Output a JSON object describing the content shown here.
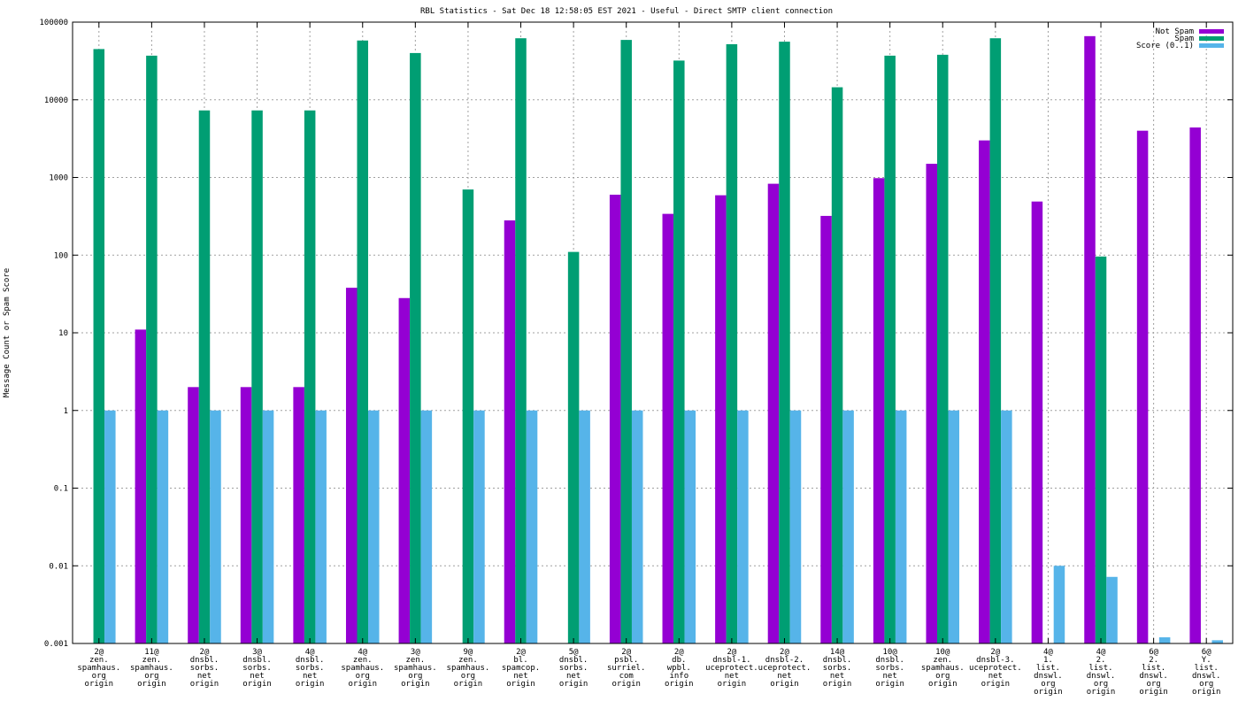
{
  "chart_data": {
    "type": "bar",
    "title": "RBL Statistics - Sat Dec 18 12:58:05 EST 2021 - Useful - Direct SMTP client connection",
    "ylabel": "Message Count or Spam Score",
    "xlabel": "",
    "yscale": "log",
    "ylim": [
      0.001,
      100000
    ],
    "yticks": [
      "0.001",
      "0.01",
      "0.1",
      "1",
      "10",
      "100",
      "1000",
      "10000",
      "100000"
    ],
    "grid": true,
    "legend_position": "top-right",
    "categories": [
      [
        "2@",
        "zen.",
        "spamhaus.",
        "org",
        "origin"
      ],
      [
        "11@",
        "zen.",
        "spamhaus.",
        "org",
        "origin"
      ],
      [
        "2@",
        "dnsbl.",
        "sorbs.",
        "net",
        "origin"
      ],
      [
        "3@",
        "dnsbl.",
        "sorbs.",
        "net",
        "origin"
      ],
      [
        "4@",
        "dnsbl.",
        "sorbs.",
        "net",
        "origin"
      ],
      [
        "4@",
        "zen.",
        "spamhaus.",
        "org",
        "origin"
      ],
      [
        "3@",
        "zen.",
        "spamhaus.",
        "org",
        "origin"
      ],
      [
        "9@",
        "zen.",
        "spamhaus.",
        "org",
        "origin"
      ],
      [
        "2@",
        "bl.",
        "spamcop.",
        "net",
        "origin"
      ],
      [
        "5@",
        "dnsbl.",
        "sorbs.",
        "net",
        "origin"
      ],
      [
        "2@",
        "psbl.",
        "surriel.",
        "com",
        "origin"
      ],
      [
        "2@",
        "db.",
        "wpbl.",
        "info",
        "origin"
      ],
      [
        "2@",
        "dnsbl-1.",
        "uceprotect.",
        "net",
        "origin"
      ],
      [
        "2@",
        "dnsbl-2.",
        "uceprotect.",
        "net",
        "origin"
      ],
      [
        "14@",
        "dnsbl.",
        "sorbs.",
        "net",
        "origin"
      ],
      [
        "10@",
        "dnsbl.",
        "sorbs.",
        "net",
        "origin"
      ],
      [
        "10@",
        "zen.",
        "spamhaus.",
        "org",
        "origin"
      ],
      [
        "2@",
        "dnsbl-3.",
        "uceprotect.",
        "net",
        "origin"
      ],
      [
        "4@",
        "1.",
        "list.",
        "dnswl.",
        "org",
        "origin"
      ],
      [
        "4@",
        "2.",
        "list.",
        "dnswl.",
        "org",
        "origin"
      ],
      [
        "6@",
        "2.",
        "list.",
        "dnswl.",
        "org",
        "origin"
      ],
      [
        "6@",
        "Y.",
        "list.",
        "dnswl.",
        "org",
        "origin"
      ]
    ],
    "series": [
      {
        "name": "Not Spam",
        "color": "#9400d3",
        "values": [
          0,
          11,
          2,
          2,
          2,
          38,
          28,
          0,
          280,
          0,
          600,
          340,
          590,
          830,
          320,
          980,
          1500,
          3000,
          490,
          66000,
          4000,
          4400
        ]
      },
      {
        "name": "Spam",
        "color": "#009e73",
        "values": [
          45000,
          37000,
          7300,
          7300,
          7300,
          58000,
          40000,
          700,
          62000,
          110,
          59000,
          32000,
          52000,
          56000,
          14500,
          37000,
          38000,
          62000,
          0,
          96,
          0,
          0
        ]
      },
      {
        "name": "Score (0..1)",
        "color": "#56b4e9",
        "values": [
          1,
          1,
          1,
          1,
          1,
          1,
          1,
          1,
          1,
          1,
          1,
          1,
          1,
          1,
          1,
          1,
          1,
          1,
          0.01,
          0.0072,
          0.0012,
          0.0011
        ]
      }
    ]
  }
}
